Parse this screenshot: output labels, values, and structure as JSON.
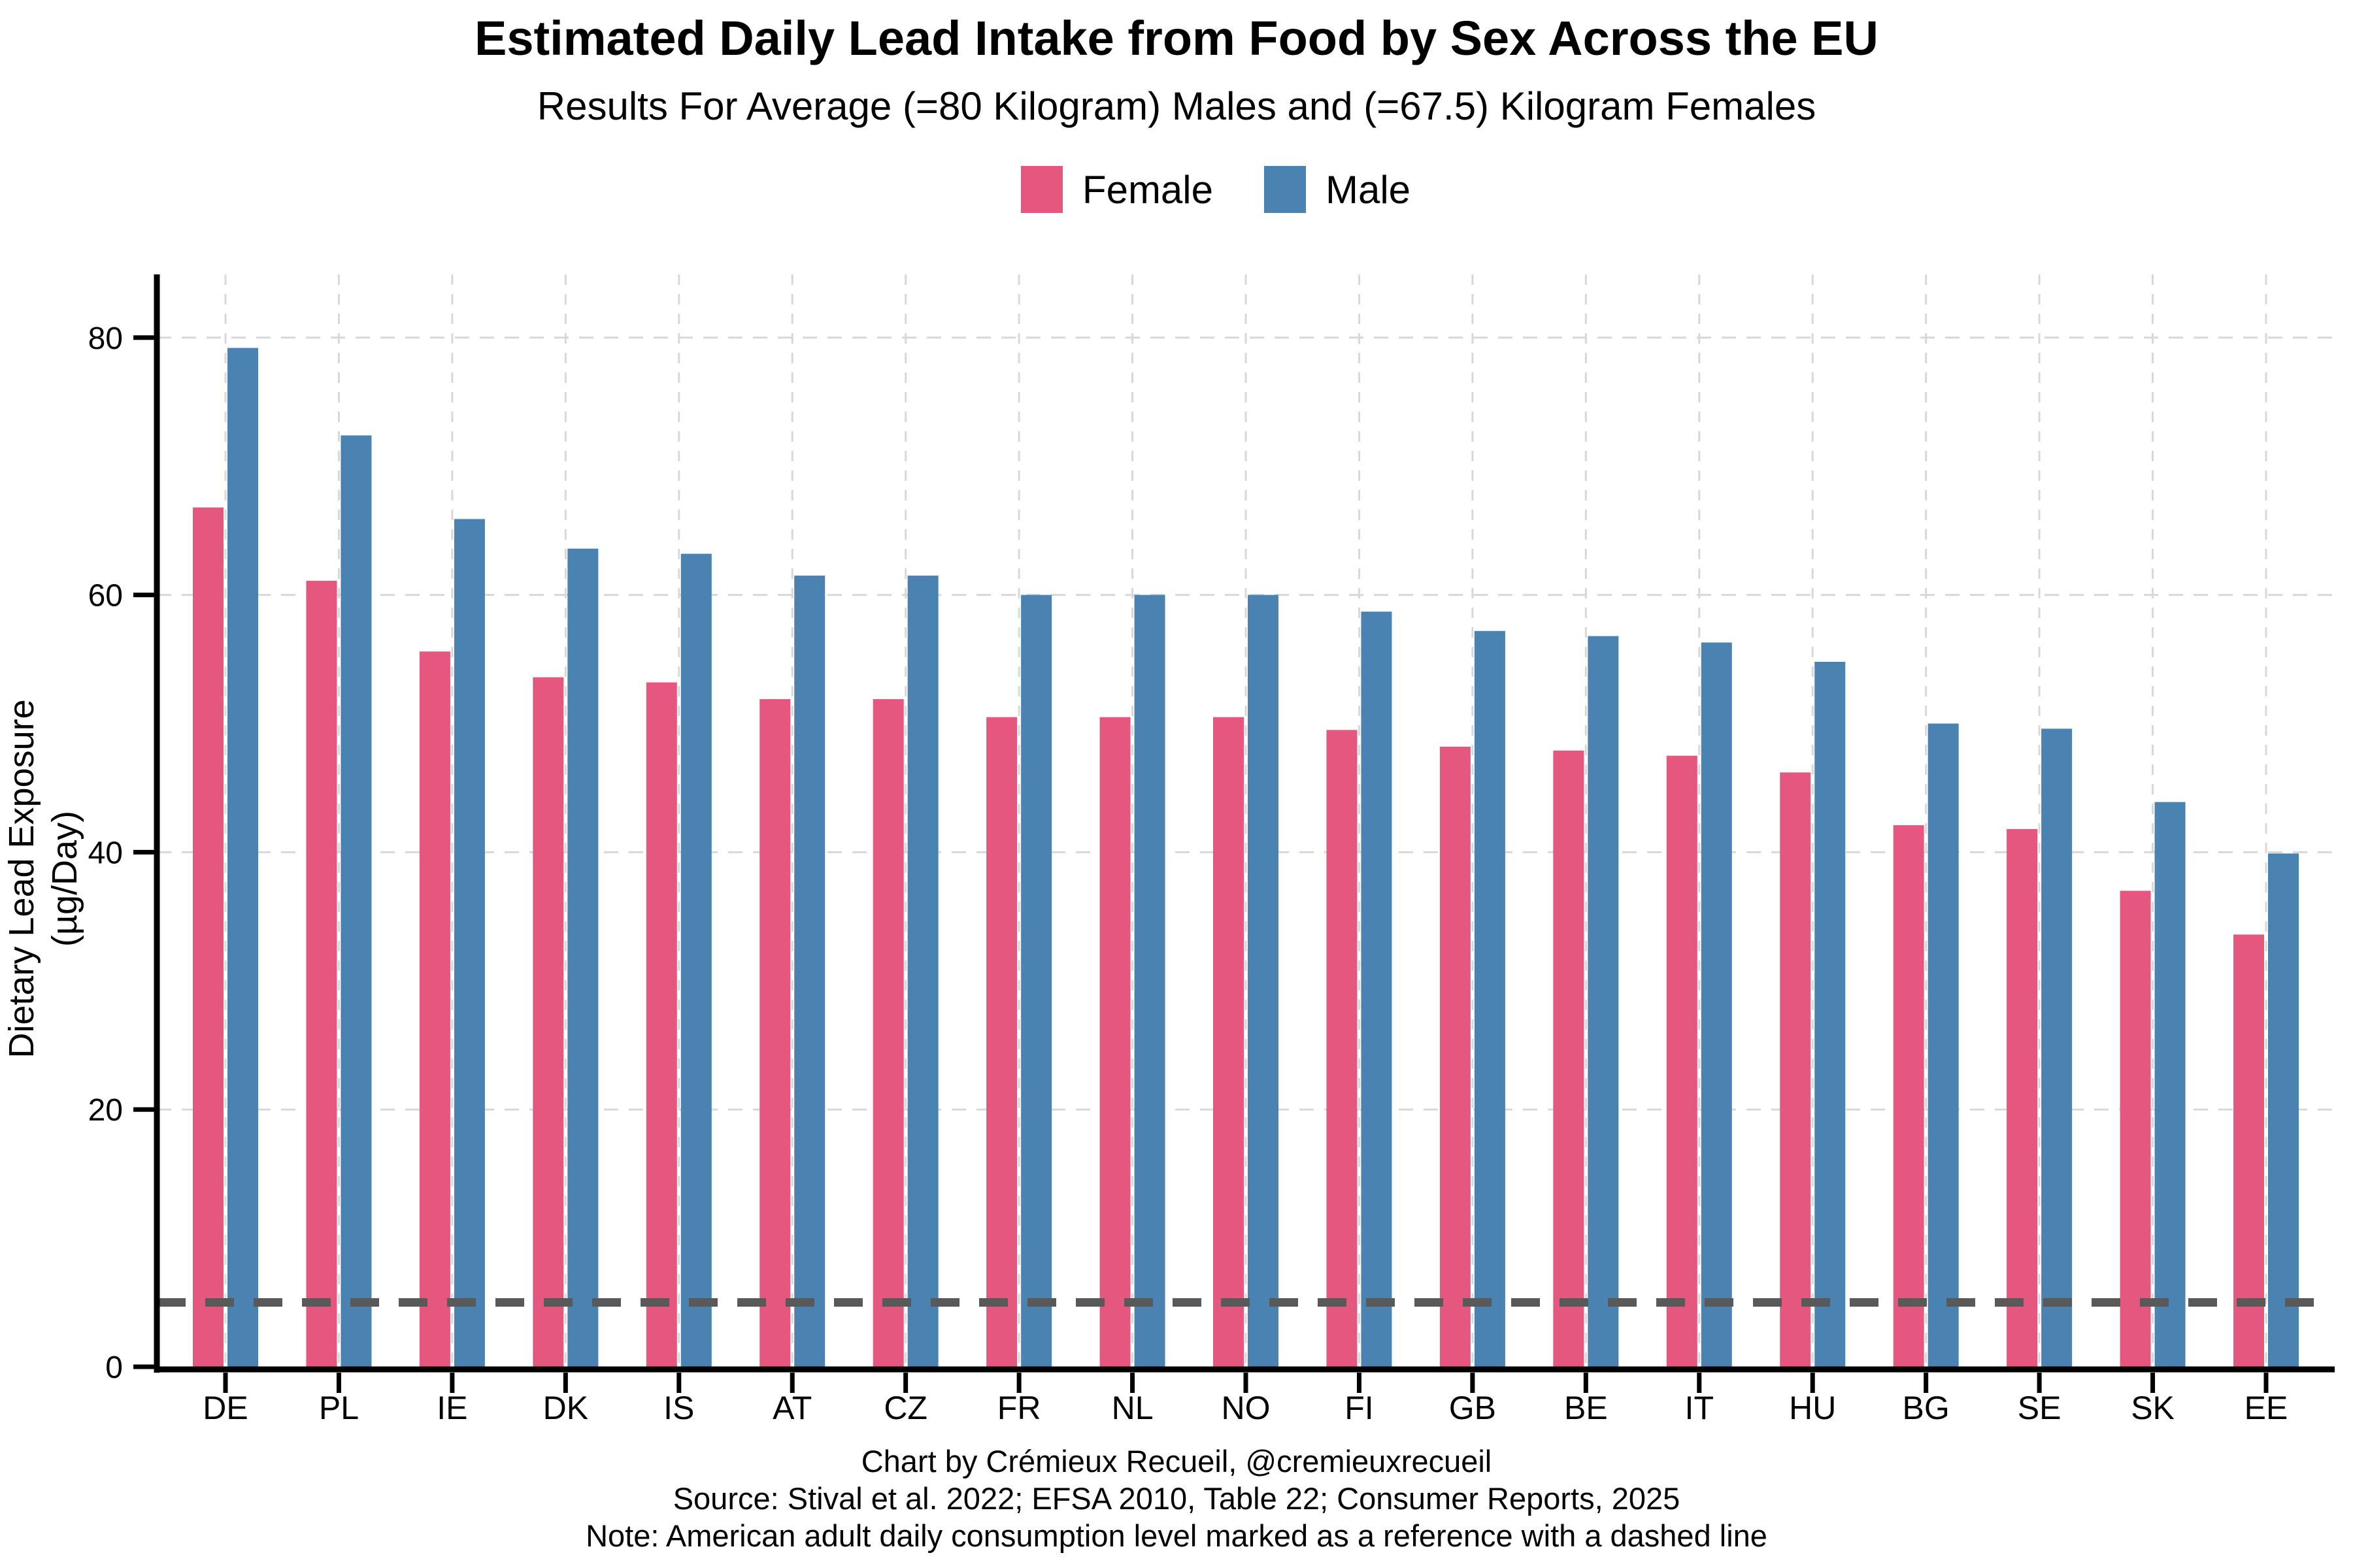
{
  "title": "Estimated Daily Lead Intake from Food by Sex Across the EU",
  "subtitle": "Results For Average (=80 Kilogram) Males and (=67.5) Kilogram Females",
  "legend": {
    "items": [
      {
        "label": "Female",
        "color": "#E5577F"
      },
      {
        "label": "Male",
        "color": "#4A82B2"
      }
    ]
  },
  "y_axis": {
    "title_line1": "Dietary Lead Exposure",
    "title_line2": "(µg/Day)",
    "ticks": [
      0,
      20,
      40,
      60,
      80
    ]
  },
  "chart_data": {
    "type": "bar",
    "title": "Estimated Daily Lead Intake from Food by Sex Across the EU",
    "subtitle": "Results For Average (=80 Kilogram) Males and (=67.5) Kilogram Females",
    "xlabel": "",
    "ylabel": "Dietary Lead Exposure (µg/Day)",
    "ylim": [
      0,
      84
    ],
    "grid": "light gray dashed: horizontal at 20-unit intervals, vertical at each category center",
    "legend_position": "top center",
    "categories": [
      "DE",
      "PL",
      "IE",
      "DK",
      "IS",
      "AT",
      "CZ",
      "FR",
      "NL",
      "NO",
      "FI",
      "GB",
      "BE",
      "IT",
      "HU",
      "BG",
      "SE",
      "SK",
      "EE"
    ],
    "series": [
      {
        "name": "Female",
        "color": "#E5577F",
        "values": [
          66.8,
          61.1,
          55.6,
          53.6,
          53.2,
          51.9,
          51.9,
          50.5,
          50.5,
          50.5,
          49.5,
          48.2,
          47.9,
          47.5,
          46.2,
          42.1,
          41.8,
          37.0,
          33.6
        ]
      },
      {
        "name": "Male",
        "color": "#4A82B2",
        "values": [
          79.2,
          72.4,
          65.9,
          63.6,
          63.2,
          61.5,
          61.5,
          60.0,
          60.0,
          60.0,
          58.7,
          57.2,
          56.8,
          56.3,
          54.8,
          50.0,
          49.6,
          43.9,
          39.9
        ]
      }
    ],
    "reference_line": {
      "value": 5,
      "style": "dashed",
      "color": "#595959",
      "label": "American adult daily consumption level"
    }
  },
  "captions": {
    "line1": "Chart by Crémieux Recueil, @cremieuxrecueil",
    "line2": "Source: Stival et al. 2022; EFSA 2010, Table 22; Consumer Reports, 2025",
    "line3": "Note: American adult daily consumption level marked as a reference with a dashed line"
  },
  "colors": {
    "female": "#E5577F",
    "male": "#4A82B2",
    "gridline": "#D8D8D8",
    "reference": "#595959",
    "axis": "#000000",
    "background": "#FFFFFF"
  }
}
